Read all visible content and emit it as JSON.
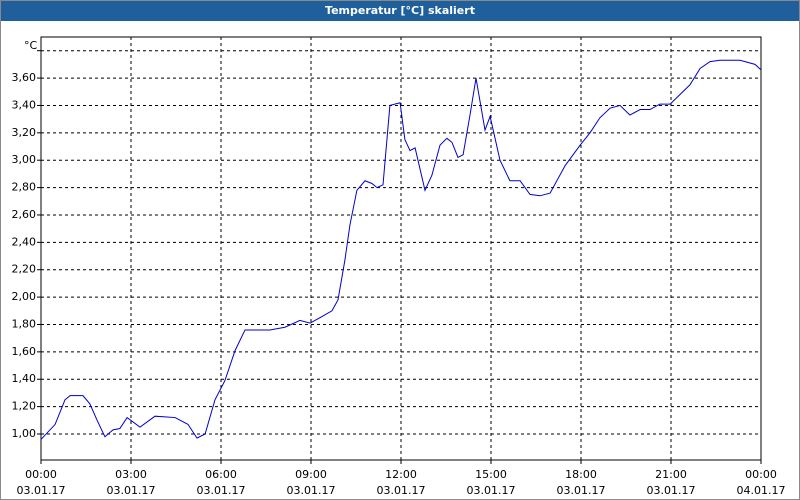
{
  "chart_data": {
    "type": "line",
    "title": "Temperatur [°C] skaliert",
    "y_unit": "°C",
    "x": [
      0,
      0.47,
      0.8,
      0.97,
      1.4,
      1.63,
      1.87,
      2.13,
      2.4,
      2.63,
      2.87,
      3.3,
      3.8,
      4.47,
      4.9,
      5.2,
      5.47,
      5.8,
      6.13,
      6.47,
      6.8,
      7.37,
      7.63,
      8.13,
      8.63,
      8.97,
      9.3,
      9.7,
      9.9,
      10.13,
      10.3,
      10.53,
      10.8,
      11.03,
      11.2,
      11.4,
      11.63,
      11.97,
      12.13,
      12.3,
      12.47,
      12.8,
      13.03,
      13.3,
      13.53,
      13.7,
      13.9,
      14.07,
      14.3,
      14.5,
      14.8,
      14.97,
      15.3,
      15.63,
      15.97,
      16.3,
      16.63,
      16.97,
      17.47,
      17.97,
      18.3,
      18.63,
      18.97,
      19.3,
      19.63,
      19.97,
      20.3,
      20.63,
      20.97,
      21.3,
      21.63,
      21.97,
      22.3,
      22.63,
      23.3,
      23.8,
      24
    ],
    "series": [
      {
        "name": "Temperatur",
        "color": "#0000cc",
        "values": [
          0.96,
          1.07,
          1.25,
          1.28,
          1.28,
          1.22,
          1.1,
          0.98,
          1.03,
          1.04,
          1.12,
          1.05,
          1.13,
          1.12,
          1.07,
          0.97,
          1.0,
          1.25,
          1.39,
          1.61,
          1.76,
          1.76,
          1.76,
          1.78,
          1.83,
          1.81,
          1.85,
          1.9,
          1.98,
          2.27,
          2.53,
          2.78,
          2.85,
          2.83,
          2.8,
          2.82,
          3.4,
          3.42,
          3.15,
          3.07,
          3.09,
          2.78,
          2.89,
          3.11,
          3.16,
          3.13,
          3.02,
          3.04,
          3.33,
          3.6,
          3.22,
          3.32,
          3.0,
          2.85,
          2.85,
          2.75,
          2.74,
          2.76,
          2.96,
          3.11,
          3.2,
          3.31,
          3.38,
          3.4,
          3.33,
          3.37,
          3.37,
          3.41,
          3.41,
          3.48,
          3.55,
          3.67,
          3.72,
          3.73,
          3.73,
          3.7,
          3.66
        ]
      }
    ],
    "xlim": [
      0,
      24
    ],
    "xticks": [
      {
        "value": 0,
        "label": "00:00"
      },
      {
        "value": 3,
        "label": "03:00"
      },
      {
        "value": 6,
        "label": "06:00"
      },
      {
        "value": 9,
        "label": "09:00"
      },
      {
        "value": 12,
        "label": "12:00"
      },
      {
        "value": 15,
        "label": "15:00"
      },
      {
        "value": 18,
        "label": "18:00"
      },
      {
        "value": 21,
        "label": "21:00"
      },
      {
        "value": 24,
        "label": "00:00"
      }
    ],
    "xtick_dates": [
      "03.01.17",
      "03.01.17",
      "03.01.17",
      "03.01.17",
      "03.01.17",
      "03.01.17",
      "03.01.17",
      "03.01.17",
      "04.01.17"
    ],
    "ylim": [
      0.81,
      3.9
    ],
    "yticks": [
      {
        "value": 1.0,
        "label": "1,00"
      },
      {
        "value": 1.2,
        "label": "1,20"
      },
      {
        "value": 1.4,
        "label": "1,40"
      },
      {
        "value": 1.6,
        "label": "1,60"
      },
      {
        "value": 1.8,
        "label": "1,80"
      },
      {
        "value": 2.0,
        "label": "2,00"
      },
      {
        "value": 2.2,
        "label": "2,20"
      },
      {
        "value": 2.4,
        "label": "2,40"
      },
      {
        "value": 2.6,
        "label": "2,60"
      },
      {
        "value": 2.8,
        "label": "2,80"
      },
      {
        "value": 3.0,
        "label": "3,00"
      },
      {
        "value": 3.2,
        "label": "3,20"
      },
      {
        "value": 3.4,
        "label": "3,40"
      },
      {
        "value": 3.6,
        "label": "3,60"
      },
      {
        "value": 3.8,
        "label": null
      }
    ],
    "grid": true
  }
}
